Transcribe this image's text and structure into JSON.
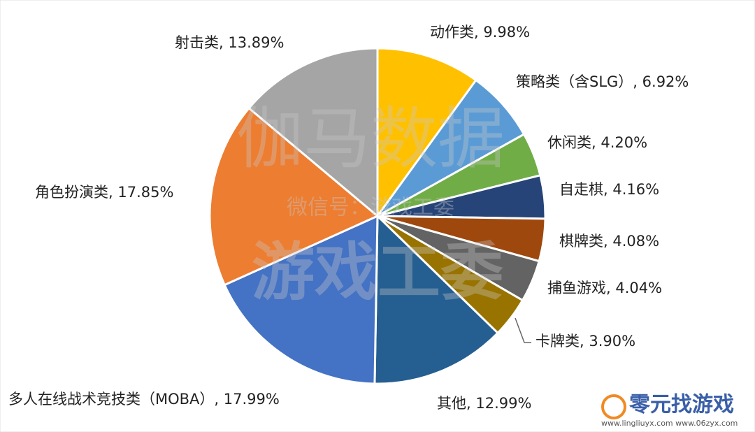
{
  "chart_data": {
    "type": "pie",
    "value_labels": [
      "动作类, 9.98%",
      "策略类（含SLG）, 6.92%",
      "休闲类, 4.20%",
      "自走棋, 4.16%",
      "棋牌类, 4.08%",
      "捕鱼游戏, 4.04%",
      "卡牌类, 3.90%",
      "其他, 12.99%",
      "多人在线战术竞技类（MOBA）, 17.99%",
      "角色扮演类, 17.85%",
      "射击类, 13.89%"
    ],
    "values": [
      9.98,
      6.92,
      4.2,
      4.16,
      4.08,
      4.04,
      3.9,
      12.99,
      17.99,
      17.85,
      13.89
    ],
    "colors": [
      "#ffc000",
      "#5b9bd5",
      "#70ad47",
      "#264478",
      "#9e480e",
      "#636363",
      "#997300",
      "#255e91",
      "#4472c4",
      "#ed7d31",
      "#a5a5a5"
    ]
  },
  "watermark": {
    "main": "伽马数据",
    "sub": "微信号：游戏工委",
    "bottom": "游戏工委"
  },
  "logo": {
    "name": "零元找游戏",
    "url": "www.lingliuyx.com  www.06zyx.com"
  }
}
